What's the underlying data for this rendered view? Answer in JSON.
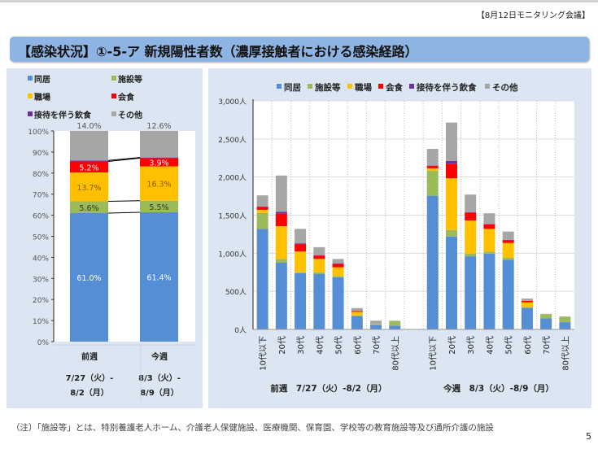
{
  "header": {
    "meeting_label": "【8月12日モニタリング会議】",
    "title": "【感染状況】①-5-ア 新規陽性者数（濃厚接触者における感染経路）"
  },
  "footer": {
    "note": "（注）「施設等」とは、特別養護老人ホーム、介護老人保健施設、医療機関、保育園、学校等の教育施設等及び通所介護の施設",
    "page_number": "5"
  },
  "chart_data": [
    {
      "type": "bar",
      "stacked": "percent",
      "categories": [
        "前週",
        "今週"
      ],
      "category_dates": [
        [
          "7/27（火）-",
          "8/2（月）"
        ],
        [
          "8/3（火）-",
          "8/9（月）"
        ]
      ],
      "series": [
        {
          "name": "同居",
          "color": "#558ED5",
          "values": [
            61.0,
            61.4
          ],
          "labels": [
            "61.0%",
            "61.4%"
          ]
        },
        {
          "name": "施設等",
          "color": "#9BBB59",
          "values": [
            5.6,
            5.5
          ],
          "labels": [
            "5.6%",
            "5.5%"
          ]
        },
        {
          "name": "職場",
          "color": "#FFC000",
          "values": [
            13.7,
            16.3
          ],
          "labels": [
            "13.7%",
            "16.3%"
          ]
        },
        {
          "name": "会食",
          "color": "#FF0000",
          "values": [
            5.2,
            3.9
          ],
          "labels": [
            "5.2%",
            "3.9%"
          ]
        },
        {
          "name": "接待を伴う飲食",
          "color": "#7030A0",
          "values": [
            0.5,
            0.3
          ],
          "labels": [
            "0.5%",
            "0.3%"
          ]
        },
        {
          "name": "その他",
          "color": "#A6A6A6",
          "values": [
            14.0,
            12.6
          ],
          "labels": [
            "14.0%",
            "12.6%"
          ]
        }
      ],
      "yticks": [
        "0%",
        "10%",
        "20%",
        "30%",
        "40%",
        "50%",
        "60%",
        "70%",
        "80%",
        "90%",
        "100%"
      ],
      "ylim": [
        0,
        100
      ],
      "legend": "top"
    },
    {
      "type": "bar",
      "stacked": "value",
      "groups": [
        {
          "label": "前週　7/27（火）-8/2（月）"
        },
        {
          "label": "今週　8/3（火）-8/9（月）"
        }
      ],
      "categories": [
        "10代以下",
        "20代",
        "30代",
        "40代",
        "50代",
        "60代",
        "70代",
        "80代以上"
      ],
      "series": [
        {
          "name": "同居",
          "color": "#558ED5",
          "values": [
            [
              1320,
              875,
              740,
              730,
              685,
              175,
              60,
              50
            ],
            [
              1755,
              1220,
              960,
              995,
              915,
              285,
              145,
              95
            ]
          ]
        },
        {
          "name": "施設等",
          "color": "#9BBB59",
          "values": [
            [
              210,
              50,
              10,
              20,
              15,
              10,
              5,
              60
            ],
            [
              330,
              85,
              35,
              25,
              25,
              5,
              55,
              70
            ]
          ]
        },
        {
          "name": "職場",
          "color": "#FFC000",
          "values": [
            [
              40,
              430,
              275,
              175,
              115,
              45,
              5,
              0
            ],
            [
              30,
              680,
              435,
              300,
              195,
              65,
              0,
              0
            ]
          ]
        },
        {
          "name": "会食",
          "color": "#FF0000",
          "values": [
            [
              40,
              165,
              95,
              45,
              45,
              10,
              0,
              0
            ],
            [
              30,
              190,
              105,
              60,
              35,
              20,
              0,
              0
            ]
          ]
        },
        {
          "name": "接待を伴う飲食",
          "color": "#7030A0",
          "values": [
            [
              5,
              25,
              10,
              5,
              5,
              0,
              0,
              0
            ],
            [
              5,
              35,
              5,
              5,
              5,
              0,
              0,
              0
            ]
          ]
        },
        {
          "name": "その他",
          "color": "#A6A6A6",
          "values": [
            [
              145,
              475,
              190,
              105,
              60,
              40,
              45,
              5
            ],
            [
              220,
              505,
              230,
              140,
              110,
              30,
              5,
              5
            ]
          ]
        }
      ],
      "yticks": [
        "0人",
        "500人",
        "1,000人",
        "1,500人",
        "2,000人",
        "2,500人",
        "3,000人"
      ],
      "ylim": [
        0,
        3000
      ],
      "grid": true,
      "legend": "top"
    }
  ]
}
